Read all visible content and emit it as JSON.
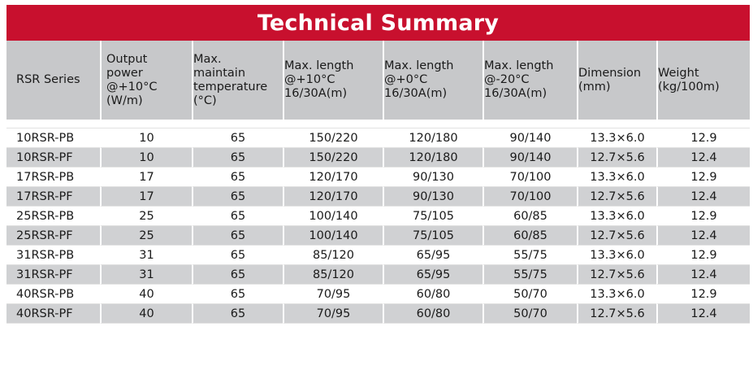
{
  "title": "Technical Summary",
  "headers": [
    "RSR Series",
    "Output\npower\n@+10°C\n(W/m)",
    "Max.\nmaintain\ntemperature\n(°C)",
    "Max. length\n@+10°C\n16/30A(m)",
    "Max. length\n@+0°C\n16/30A(m)",
    "Max. length\n@-20°C\n16/30A(m)",
    "Dimension\n(mm)",
    "Weight\n(kg/100m)"
  ],
  "rows": [
    [
      "10RSR-PB",
      "10",
      "65",
      "150/220",
      "120/180",
      "90/140",
      "13.3×6.0",
      "12.9"
    ],
    [
      "10RSR-PF",
      "10",
      "65",
      "150/220",
      "120/180",
      "90/140",
      "12.7×5.6",
      "12.4"
    ],
    [
      "17RSR-PB",
      "17",
      "65",
      "120/170",
      "90/130",
      "70/100",
      "13.3×6.0",
      "12.9"
    ],
    [
      "17RSR-PF",
      "17",
      "65",
      "120/170",
      "90/130",
      "70/100",
      "12.7×5.6",
      "12.4"
    ],
    [
      "25RSR-PB",
      "25",
      "65",
      "100/140",
      "75/105",
      "60/85",
      "13.3×6.0",
      "12.9"
    ],
    [
      "25RSR-PF",
      "25",
      "65",
      "100/140",
      "75/105",
      "60/85",
      "12.7×5.6",
      "12.4"
    ],
    [
      "31RSR-PB",
      "31",
      "65",
      "85/120",
      "65/95",
      "55/75",
      "13.3×6.0",
      "12.9"
    ],
    [
      "31RSR-PF",
      "31",
      "65",
      "85/120",
      "65/95",
      "55/75",
      "12.7×5.6",
      "12.4"
    ],
    [
      "40RSR-PB",
      "40",
      "65",
      "70/95",
      "60/80",
      "50/70",
      "13.3×6.0",
      "12.9"
    ],
    [
      "40RSR-PF",
      "40",
      "65",
      "70/95",
      "60/80",
      "50/70",
      "12.7×5.6",
      "12.4"
    ]
  ],
  "colors": {
    "title_background": "#c8102e",
    "header_background": "#c7c8ca",
    "stripe_background": "#d0d1d3"
  }
}
